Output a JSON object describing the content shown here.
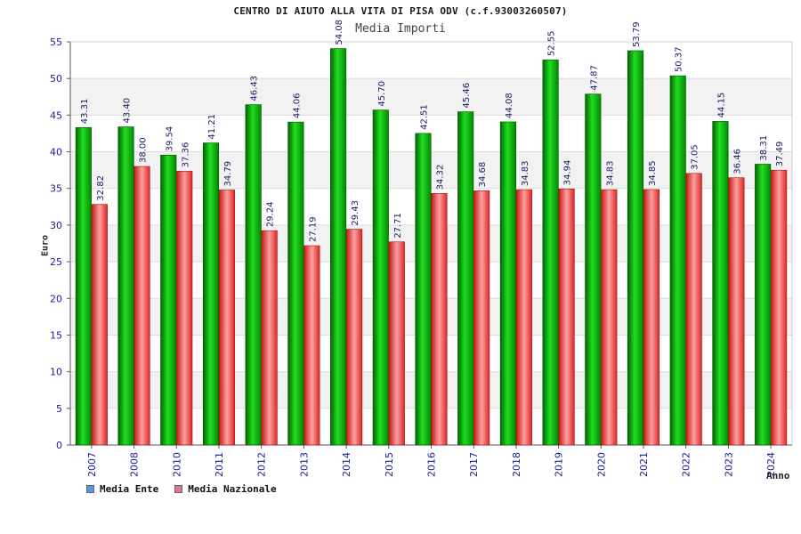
{
  "title": "CENTRO DI AIUTO ALLA VITA DI PISA ODV (c.f.93003260507)",
  "subtitle": "Media Importi",
  "chart_data": {
    "type": "bar",
    "title": "CENTRO DI AIUTO ALLA VITA DI PISA ODV (c.f.93003260507)",
    "subtitle": "Media Importi",
    "xlabel": "Anno",
    "ylabel": "Euro",
    "ylim": [
      0,
      55
    ],
    "yticks": [
      "0",
      "5",
      "10",
      "15",
      "20",
      "25",
      "30",
      "35",
      "40",
      "45",
      "50",
      "55"
    ],
    "grid": true,
    "legend_position": "bottom-left",
    "categories": [
      "2007",
      "2008",
      "2010",
      "2011",
      "2012",
      "2013",
      "2014",
      "2015",
      "2016",
      "2017",
      "2018",
      "2019",
      "2020",
      "2021",
      "2022",
      "2023",
      "2024"
    ],
    "series": [
      {
        "name": "Media Ente",
        "color": "#00aa00",
        "legend_color": "#5599ee",
        "values": [
          43.31,
          43.4,
          39.54,
          41.21,
          46.43,
          44.06,
          54.08,
          45.7,
          42.51,
          45.46,
          44.08,
          52.55,
          47.87,
          53.79,
          50.37,
          44.15,
          38.31
        ],
        "labels": [
          "43.31",
          "43.40",
          "39.54",
          "41.21",
          "46.43",
          "44.06",
          "54.08",
          "45.70",
          "42.51",
          "45.46",
          "44.08",
          "52.55",
          "47.87",
          "53.79",
          "50.37",
          "44.15",
          "38.31"
        ]
      },
      {
        "name": "Media Nazionale",
        "color": "#e03030",
        "legend_color": "#dd7799",
        "values": [
          32.82,
          38.0,
          37.36,
          34.79,
          29.24,
          27.19,
          29.43,
          27.71,
          34.32,
          34.68,
          34.83,
          34.94,
          34.83,
          34.85,
          37.05,
          36.46,
          37.49
        ],
        "labels": [
          "32.82",
          "38.00",
          "37.36",
          "34.79",
          "29.24",
          "27.19",
          "29.43",
          "27.71",
          "34.32",
          "34.68",
          "34.83",
          "34.94",
          "34.83",
          "34.85",
          "37.05",
          "36.46",
          "37.49"
        ]
      }
    ]
  }
}
